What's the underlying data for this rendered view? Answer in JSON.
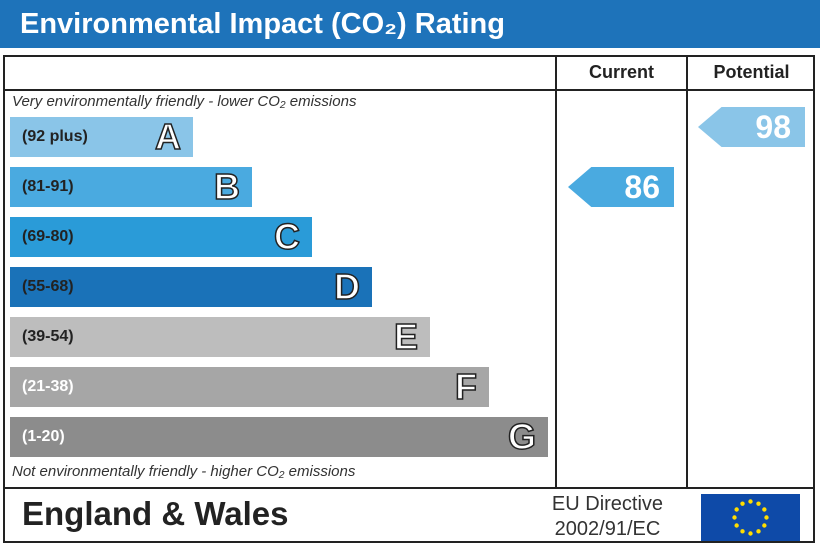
{
  "header": {
    "title": "Environmental Impact (CO₂) Rating"
  },
  "columns": {
    "current": "Current",
    "potential": "Potential"
  },
  "notes": {
    "top": "Very environmentally friendly - lower CO₂ emissions",
    "bottom": "Not environmentally friendly - higher CO₂ emissions"
  },
  "footer": {
    "country": "England & Wales",
    "directive_line1": "EU Directive",
    "directive_line2": "2002/91/EC"
  },
  "chart_data": {
    "type": "bar",
    "bands": [
      {
        "letter": "A",
        "range": "(92 plus)",
        "color": "#8ac5e8",
        "text": "#222"
      },
      {
        "letter": "B",
        "range": "(81-91)",
        "color": "#4aaae0",
        "text": "#222"
      },
      {
        "letter": "C",
        "range": "(69-80)",
        "color": "#2a9bd8",
        "text": "#222"
      },
      {
        "letter": "D",
        "range": "(55-68)",
        "color": "#1a72b8",
        "text": "#222"
      },
      {
        "letter": "E",
        "range": "(39-54)",
        "color": "#bdbdbd",
        "text": "#222"
      },
      {
        "letter": "F",
        "range": "(21-38)",
        "color": "#a6a6a6",
        "text": "#fff"
      },
      {
        "letter": "G",
        "range": "(1-20)",
        "color": "#8c8c8c",
        "text": "#fff"
      }
    ],
    "current": {
      "value": 86,
      "band": "B",
      "color": "#4aaae0"
    },
    "potential": {
      "value": 98,
      "band": "A",
      "color": "#8ac5e8"
    }
  }
}
